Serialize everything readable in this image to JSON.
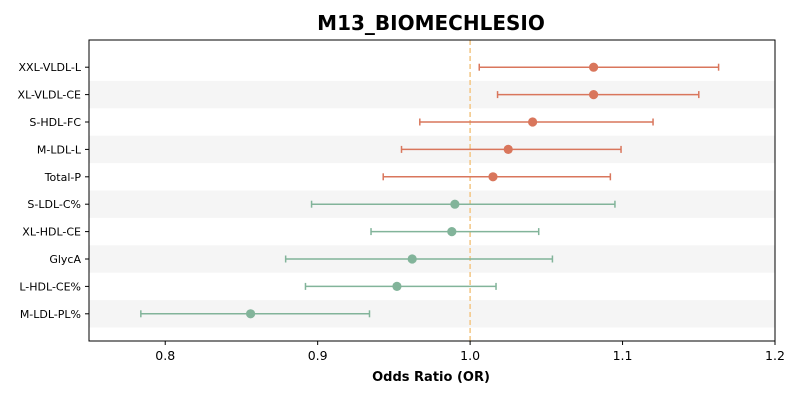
{
  "chart_data": {
    "type": "forest",
    "title": "M13_BIOMECHLESIO",
    "xlabel": "Odds Ratio (OR)",
    "ylabel": "",
    "xlim": [
      0.75,
      1.2
    ],
    "xticks": [
      0.8,
      0.9,
      1.0,
      1.1,
      1.2
    ],
    "xtick_labels": [
      "0.8",
      "0.9",
      "1.0",
      "1.1",
      "1.2"
    ],
    "reference_line": 1.0,
    "grid": false,
    "alternating_row_bands": true,
    "colors": {
      "risk": "#d9765c",
      "protective": "#82b49a",
      "reference_line": "#f3c98b",
      "band": "#f5f5f5"
    },
    "rows": [
      {
        "label": "XXL-VLDL-L",
        "or": 1.081,
        "ci_low": 1.006,
        "ci_high": 1.163,
        "group": "risk"
      },
      {
        "label": "XL-VLDL-CE",
        "or": 1.081,
        "ci_low": 1.018,
        "ci_high": 1.15,
        "group": "risk"
      },
      {
        "label": "S-HDL-FC",
        "or": 1.041,
        "ci_low": 0.967,
        "ci_high": 1.12,
        "group": "risk"
      },
      {
        "label": "M-LDL-L",
        "or": 1.025,
        "ci_low": 0.955,
        "ci_high": 1.099,
        "group": "risk"
      },
      {
        "label": "Total-P",
        "or": 1.015,
        "ci_low": 0.943,
        "ci_high": 1.092,
        "group": "risk"
      },
      {
        "label": "S-LDL-C%",
        "or": 0.99,
        "ci_low": 0.896,
        "ci_high": 1.095,
        "group": "protective"
      },
      {
        "label": "XL-HDL-CE",
        "or": 0.988,
        "ci_low": 0.935,
        "ci_high": 1.045,
        "group": "protective"
      },
      {
        "label": "GlycA",
        "or": 0.962,
        "ci_low": 0.879,
        "ci_high": 1.054,
        "group": "protective"
      },
      {
        "label": "L-HDL-CE%",
        "or": 0.952,
        "ci_low": 0.892,
        "ci_high": 1.017,
        "group": "protective"
      },
      {
        "label": "M-LDL-PL%",
        "or": 0.856,
        "ci_low": 0.784,
        "ci_high": 0.934,
        "group": "protective"
      }
    ]
  }
}
